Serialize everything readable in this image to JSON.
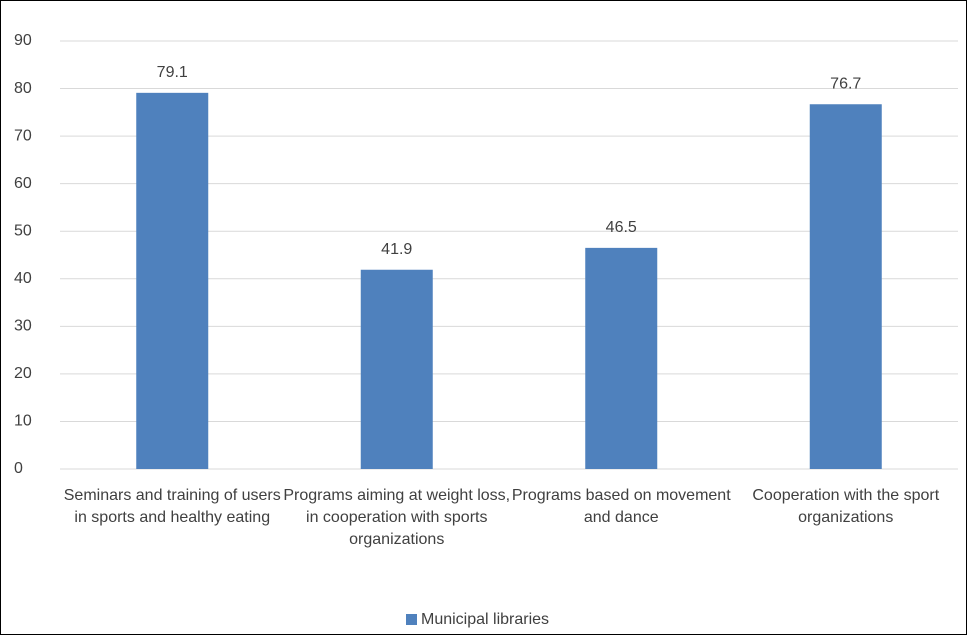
{
  "chart_data": {
    "type": "bar",
    "categories": [
      "Seminars and training of users in sports and healthy eating",
      "Programs aiming at weight loss, in cooperation with sports organizations",
      "Programs based on movement and dance",
      "Cooperation with the sport organizations"
    ],
    "series": [
      {
        "name": "Municipal libraries",
        "color": "#4f81bd",
        "values": [
          79.1,
          41.9,
          46.5,
          76.7
        ]
      }
    ],
    "ylim": [
      0,
      90
    ],
    "yticks": [
      0,
      10,
      20,
      30,
      40,
      50,
      60,
      70,
      80,
      90
    ],
    "grid": true,
    "legend": "bottom"
  }
}
